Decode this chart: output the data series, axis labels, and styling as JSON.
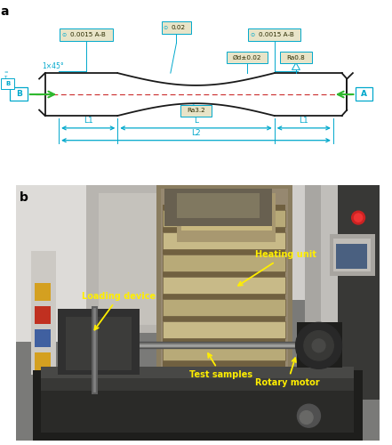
{
  "panel_a_label": "a",
  "panel_b_label": "b",
  "specimen_color": "#1a1a1a",
  "dim_color": "#00a8cc",
  "green_color": "#2db82d",
  "red_dash_color": "#cc3333",
  "annotation_bg": "#e8e4c8",
  "annotations_a": {
    "tol1": "0.0015 A-B",
    "tol2": "0.02",
    "tol3": "0.0015 A-B",
    "tol4": "Ød±0.02",
    "tol5": "Ra0.8",
    "tol6": "Ra3.2",
    "chamfer": "1×45°",
    "L1": "L1",
    "L": "L",
    "L2": "L2",
    "A": "A",
    "B": "B"
  },
  "annotations_b": {
    "heating_unit": "Heating unit",
    "loading_device": "Loading device",
    "test_samples": "Test samples",
    "rotary_motor": "Rotary motor"
  },
  "photo_colors": {
    "bg_light": "#c8c8c4",
    "bg_wall": "#b8b8b4",
    "machine_dark": "#282828",
    "machine_mid": "#484848",
    "machine_gray": "#686868",
    "heating_frame": "#a09070",
    "heating_block": "#c8b888",
    "heating_dark": "#706040",
    "left_wall": "#d0d0cc",
    "stripe_yellow": "#d4a020",
    "stripe_blue": "#4060a0",
    "stripe_red": "#c03020",
    "motor_dark": "#1a1a1a",
    "shaft_silver": "#909090"
  },
  "figsize": [
    4.41,
    5.0
  ],
  "dpi": 100
}
